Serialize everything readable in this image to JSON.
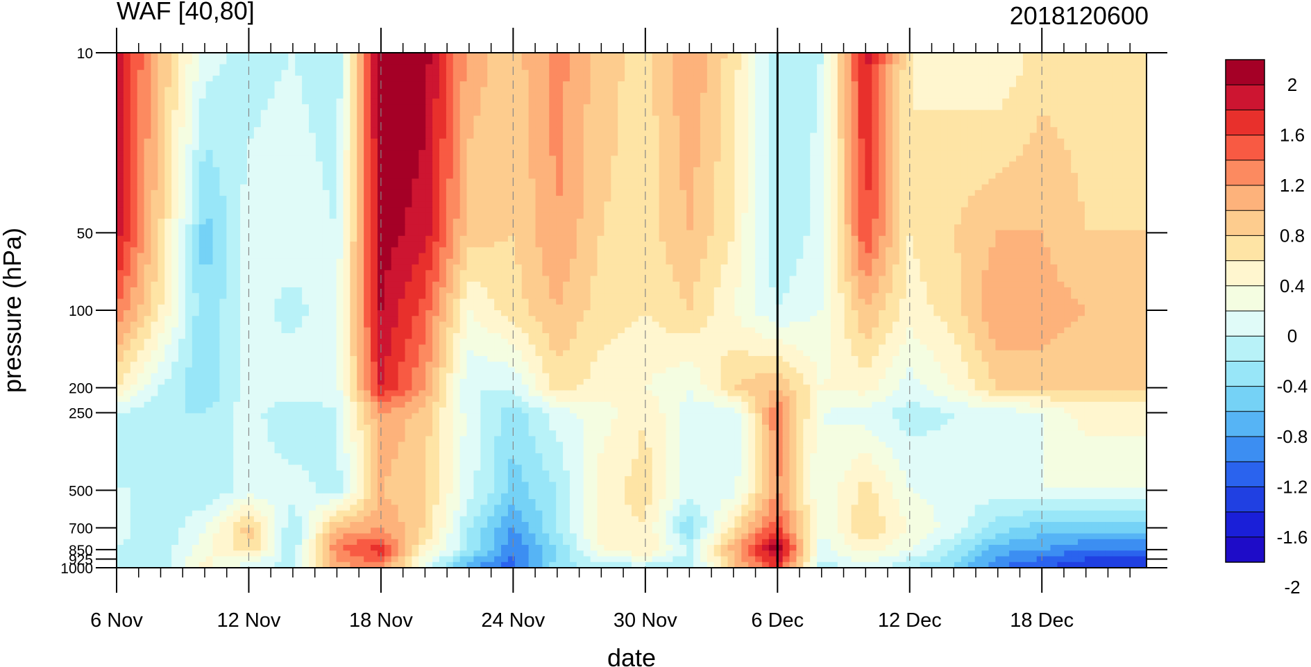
{
  "chart_data": {
    "type": "heatmap",
    "title_left": "WAF [40,80]",
    "title_right": "2018120600",
    "xlabel": "date",
    "ylabel": "pressure (hPa)",
    "x_tick_labels": [
      "6 Nov",
      "12 Nov",
      "18 Nov",
      "24 Nov",
      "30 Nov",
      "6 Dec",
      "12 Dec",
      "18 Dec"
    ],
    "y_tick_labels": [
      "10",
      "50",
      "100",
      "200",
      "250",
      "500",
      "700",
      "850",
      "925",
      "1000"
    ],
    "colorbar_labels": [
      "2",
      "1.6",
      "1.2",
      "0.8",
      "0.4",
      "0",
      "-0.4",
      "-0.8",
      "-1.2",
      "-1.6",
      "-2"
    ],
    "colorbar_colors": [
      "#a50026",
      "#cd1531",
      "#e8302c",
      "#f85a43",
      "#fc8a60",
      "#fdb27b",
      "#fdcc8e",
      "#fee4a5",
      "#fff6cf",
      "#f4fde1",
      "#e0fbf8",
      "#b8f2f8",
      "#98e6f8",
      "#75d2f6",
      "#56b4f5",
      "#3c8ef2",
      "#2a63ee",
      "#2040e2",
      "#1a1fd8",
      "#1e0cc8"
    ],
    "levels": [
      -2.2,
      -2,
      -1.8,
      -1.6,
      -1.4,
      -1.2,
      -1,
      -0.8,
      -0.6,
      -0.4,
      -0.2,
      0,
      0.2,
      0.4,
      0.6,
      0.8,
      1,
      1.2,
      1.4,
      1.6,
      1.8,
      2
    ],
    "x_days": [
      6,
      8,
      10,
      12,
      14,
      16,
      18,
      20,
      22,
      24,
      26,
      28,
      30,
      32,
      34,
      36,
      38,
      40,
      42,
      44,
      46,
      48,
      50
    ],
    "pressure_levels": [
      10,
      50,
      100,
      200,
      250,
      500,
      700,
      850,
      1000
    ],
    "grid": [
      [
        1.5,
        0.6,
        -0.3,
        -0.5,
        -0.4,
        -0.6,
        1.8,
        1.7,
        0.7,
        0.5,
        0.9,
        0.5,
        0.3,
        0.8,
        0.3,
        -0.6,
        -0.4,
        1.5,
        0.2,
        0.1,
        0.0,
        0.3,
        0.3
      ],
      [
        1.5,
        0.4,
        -0.9,
        -0.3,
        -0.2,
        -0.4,
        1.7,
        1.5,
        0.5,
        0.4,
        0.8,
        0.4,
        0.3,
        0.6,
        0.2,
        -0.6,
        -0.3,
        1.2,
        0.2,
        0.4,
        0.6,
        0.6,
        0.4
      ],
      [
        1.0,
        0.2,
        -0.8,
        -0.3,
        -0.5,
        -0.2,
        1.6,
        1.1,
        0.0,
        0.3,
        0.6,
        0.3,
        0.2,
        0.4,
        0.0,
        -0.4,
        -0.2,
        0.6,
        0.1,
        0.3,
        0.8,
        0.7,
        0.6
      ],
      [
        0.2,
        -0.4,
        -0.8,
        -0.3,
        -0.2,
        -0.3,
        1.4,
        0.8,
        -0.4,
        -0.4,
        0.3,
        0.1,
        0.0,
        -0.2,
        0.4,
        0.6,
        0.0,
        0.1,
        -0.3,
        0.0,
        0.4,
        0.5,
        0.4
      ],
      [
        -0.4,
        -0.6,
        -0.6,
        -0.3,
        -0.6,
        -0.4,
        0.8,
        0.5,
        -0.3,
        -0.7,
        -0.3,
        -0.1,
        0.2,
        -0.3,
        -0.4,
        1.0,
        -0.2,
        -0.3,
        -0.5,
        -0.4,
        -0.3,
        -0.2,
        0.1
      ],
      [
        -0.4,
        -0.4,
        -0.6,
        -0.3,
        -0.3,
        -0.5,
        0.6,
        0.4,
        -0.3,
        -0.9,
        -0.6,
        0.1,
        0.3,
        -0.3,
        -0.3,
        0.8,
        -0.2,
        0.3,
        -0.2,
        -0.3,
        -0.3,
        -0.2,
        -0.2
      ],
      [
        -0.3,
        -0.6,
        -0.2,
        0.5,
        -0.6,
        0.6,
        0.8,
        0.4,
        -0.6,
        -1.2,
        -0.6,
        0.1,
        0.2,
        -0.8,
        0.3,
        1.2,
        -0.2,
        0.4,
        0.0,
        -0.3,
        -0.7,
        -0.9,
        -0.9
      ],
      [
        -0.4,
        -0.5,
        -0.1,
        0.4,
        -0.6,
        1.0,
        1.3,
        0.1,
        -0.6,
        -1.4,
        -0.8,
        0.0,
        0.2,
        -0.4,
        0.7,
        1.8,
        -0.3,
        0.1,
        -0.2,
        -0.6,
        -1.1,
        -1.2,
        -1.4
      ],
      [
        -0.5,
        -0.5,
        0.1,
        -0.4,
        -0.5,
        0.7,
        0.9,
        -0.3,
        -1.2,
        -1.5,
        -0.7,
        -0.5,
        -0.5,
        -0.6,
        0.5,
        1.2,
        -0.5,
        -0.3,
        -0.6,
        -0.8,
        -1.4,
        -1.6,
        -1.8
      ]
    ],
    "ylim": [
      1000,
      10
    ],
    "yscale": "log",
    "marker_line_date": "6 Dec",
    "grid_lines": "dashed vertical at labeled dates"
  }
}
